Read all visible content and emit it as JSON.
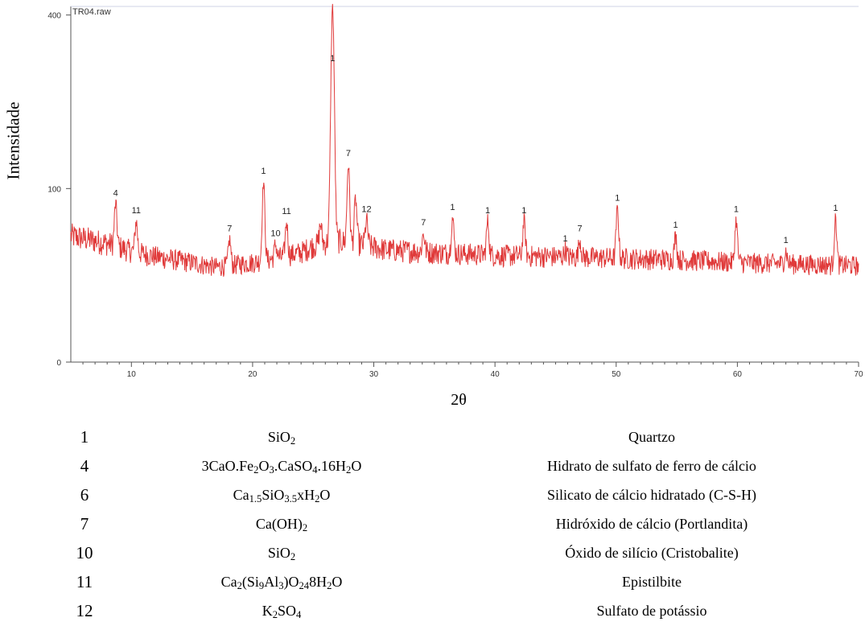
{
  "chart_data": {
    "type": "line",
    "file_label": "TR04.raw",
    "xlabel": "2θ",
    "ylabel": "Intensidade",
    "xlim": [
      5,
      70
    ],
    "ylim": [
      0,
      420
    ],
    "y_scale": "sqrt",
    "x_ticks": [
      10,
      20,
      30,
      40,
      50,
      60,
      70
    ],
    "y_ticks": [
      0,
      100,
      400
    ],
    "line_color": "#e03a3a",
    "baseline": [
      [
        5,
        53
      ],
      [
        8,
        47
      ],
      [
        10,
        41
      ],
      [
        12,
        37
      ],
      [
        15,
        33
      ],
      [
        17,
        30
      ],
      [
        20,
        33
      ],
      [
        22,
        36
      ],
      [
        24,
        40
      ],
      [
        25,
        45
      ],
      [
        27,
        49
      ],
      [
        29,
        46
      ],
      [
        31,
        42
      ],
      [
        35,
        40
      ],
      [
        40,
        38
      ],
      [
        45,
        37
      ],
      [
        50,
        36
      ],
      [
        55,
        35
      ],
      [
        60,
        33
      ],
      [
        65,
        32
      ],
      [
        70,
        31
      ]
    ],
    "peaks": [
      {
        "x": 8.7,
        "y": 83,
        "label": "4"
      },
      {
        "x": 10.4,
        "y": 66,
        "label": "11"
      },
      {
        "x": 18.1,
        "y": 50,
        "label": "7"
      },
      {
        "x": 20.9,
        "y": 108,
        "label": "1"
      },
      {
        "x": 21.9,
        "y": 46,
        "label": "10"
      },
      {
        "x": 22.8,
        "y": 65,
        "label": "11"
      },
      {
        "x": 25.6,
        "y": 63,
        "label": ""
      },
      {
        "x": 26.6,
        "y": 420,
        "label": "1"
      },
      {
        "x": 27.9,
        "y": 130,
        "label": "7"
      },
      {
        "x": 28.5,
        "y": 88,
        "label": ""
      },
      {
        "x": 29.4,
        "y": 67,
        "label": "12"
      },
      {
        "x": 34.1,
        "y": 55,
        "label": "7"
      },
      {
        "x": 36.5,
        "y": 69,
        "label": "1"
      },
      {
        "x": 39.4,
        "y": 66,
        "label": "1"
      },
      {
        "x": 42.4,
        "y": 66,
        "label": "1"
      },
      {
        "x": 45.8,
        "y": 42,
        "label": "1"
      },
      {
        "x": 47.0,
        "y": 50,
        "label": "7"
      },
      {
        "x": 50.1,
        "y": 78,
        "label": "1"
      },
      {
        "x": 54.9,
        "y": 53,
        "label": "1"
      },
      {
        "x": 59.9,
        "y": 67,
        "label": "1"
      },
      {
        "x": 64.0,
        "y": 41,
        "label": "1"
      },
      {
        "x": 68.1,
        "y": 68,
        "label": "1"
      }
    ]
  },
  "legend_rows": [
    {
      "num": "1",
      "formula_html": "SiO<sub>2</sub>",
      "desc": "Quartzo"
    },
    {
      "num": "4",
      "formula_html": "3CaO.Fe<sub>2</sub>O<sub>3</sub>.CaSO<sub>4</sub>.16H<sub>2</sub>O",
      "desc": "Hidrato de sulfato de ferro de cálcio"
    },
    {
      "num": "6",
      "formula_html": "Ca<sub>1.5</sub>SiO<sub>3.5</sub>xH<sub>2</sub>O",
      "desc": "Silicato de cálcio hidratado (C-S-H)"
    },
    {
      "num": "7",
      "formula_html": "Ca(OH)<sub>2</sub>",
      "desc": "Hidróxido de cálcio (Portlandita)"
    },
    {
      "num": "10",
      "formula_html": "SiO<sub>2</sub>",
      "desc": "Óxido de silício (Cristobalite)"
    },
    {
      "num": "11",
      "formula_html": "Ca<sub>2</sub>(Si<sub>9</sub>Al<sub>3</sub>)O<sub>24</sub>8H<sub>2</sub>O",
      "desc": "Epistilbite"
    },
    {
      "num": "12",
      "formula_html": "K<sub>2</sub>SO<sub>4</sub>",
      "desc": "Sulfato de potássio"
    }
  ]
}
